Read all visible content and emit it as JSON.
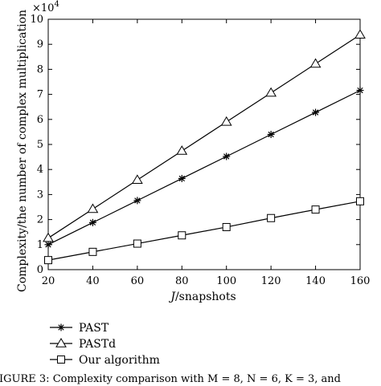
{
  "caption": "FIGURE 3: Complexity comparison with M = 8, N = 6, K = 3, and",
  "chart_data": {
    "type": "line",
    "xlabel_prefix": "J",
    "xlabel_suffix": "/snapshots",
    "ylabel": "Complexity/the number of complex multiplication",
    "y_multiplier_base": "×10",
    "y_multiplier_exp": "4",
    "xlim": [
      20,
      160
    ],
    "ylim": [
      0,
      10
    ],
    "xticks": [
      20,
      40,
      60,
      80,
      100,
      120,
      140,
      160
    ],
    "yticks": [
      0,
      1,
      2,
      3,
      4,
      5,
      6,
      7,
      8,
      9,
      10
    ],
    "grid": false,
    "legend_position": "below",
    "x": [
      20,
      40,
      60,
      80,
      100,
      120,
      140,
      160
    ],
    "series": [
      {
        "name": "PAST",
        "marker": "star",
        "values": [
          1.0,
          1.88,
          2.76,
          3.64,
          4.52,
          5.4,
          6.28,
          7.16
        ]
      },
      {
        "name": "PASTd",
        "marker": "triangle",
        "values": [
          1.26,
          2.42,
          3.58,
          4.74,
          5.9,
          7.06,
          8.22,
          9.38
        ]
      },
      {
        "name": "Our algorithm",
        "marker": "square",
        "values": [
          0.38,
          0.71,
          1.04,
          1.37,
          1.7,
          2.06,
          2.4,
          2.73
        ]
      }
    ]
  }
}
